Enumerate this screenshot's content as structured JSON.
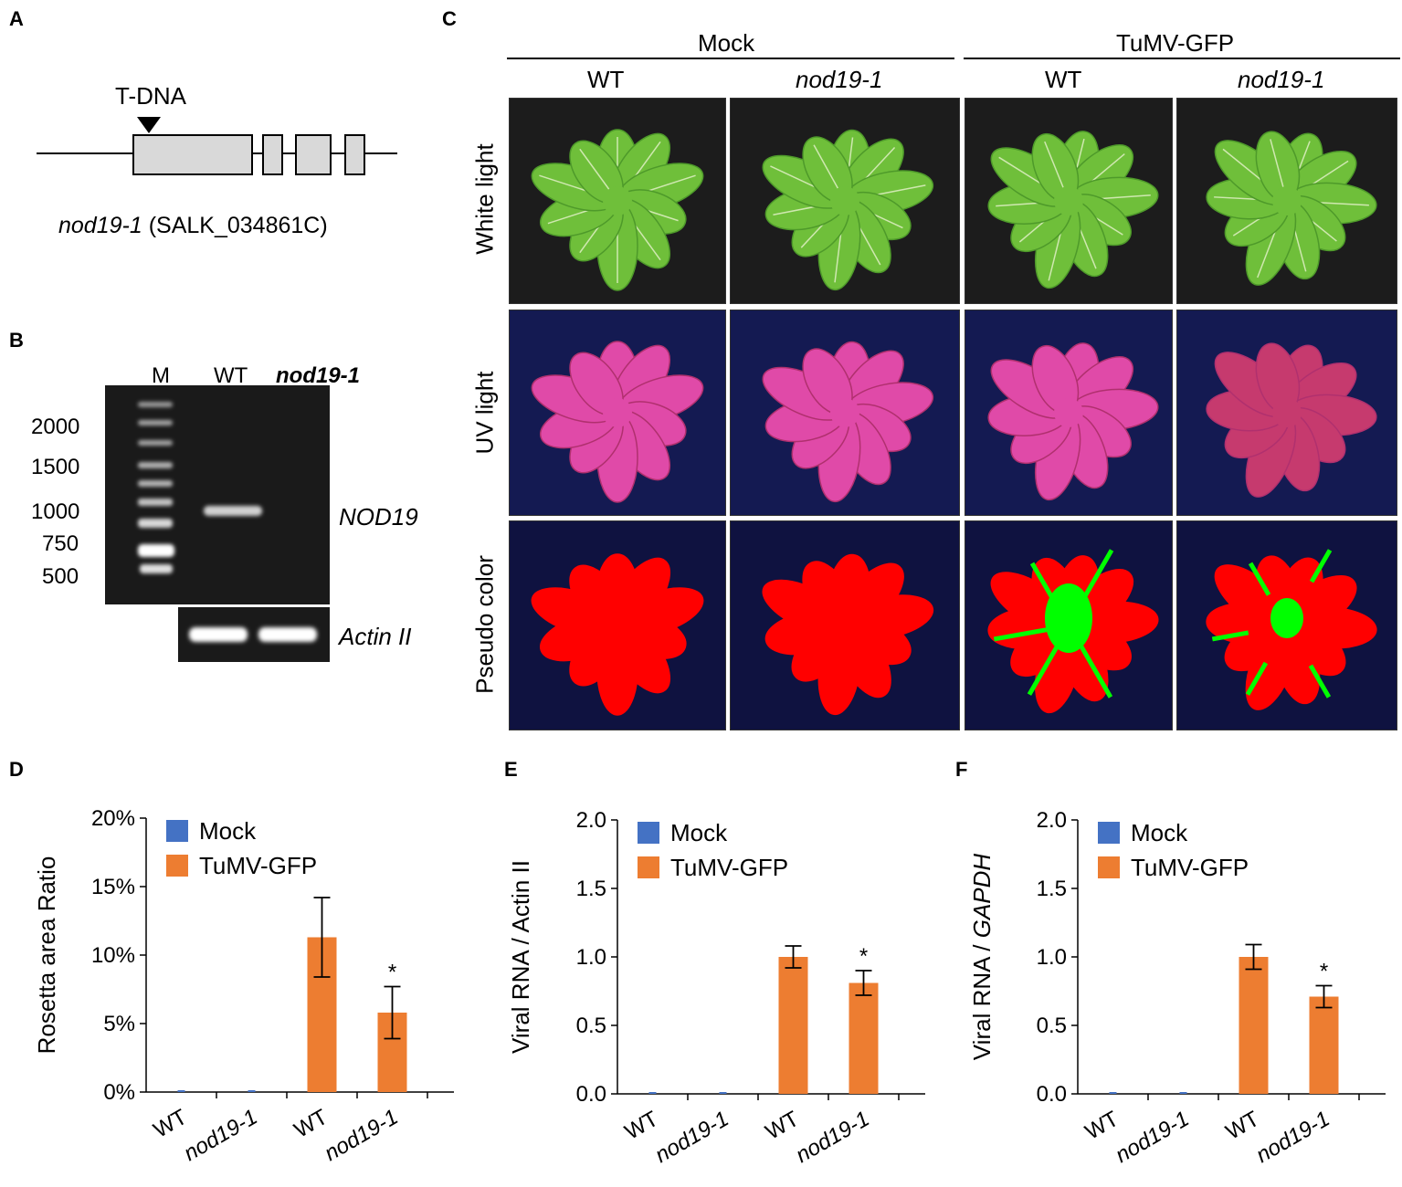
{
  "panels": {
    "a": {
      "letter": "A",
      "insertion_label": "T-DNA",
      "allele": "nod19-1",
      "line": "(SALK_034861C)"
    },
    "b": {
      "letter": "B",
      "lane_labels": [
        "M",
        "WT",
        "nod19-1"
      ],
      "ladder": [
        "2000",
        "1500",
        "1000",
        "750",
        "500"
      ],
      "gene_label": "NOD19",
      "control_label": "Actin II"
    },
    "c": {
      "letter": "C",
      "groups": [
        "Mock",
        "TuMV-GFP"
      ],
      "columns": [
        "WT",
        "nod19-1",
        "WT",
        "nod19-1"
      ],
      "rows": [
        "White light",
        "UV light",
        "Pseudo color"
      ]
    },
    "d": {
      "letter": "D"
    },
    "e": {
      "letter": "E"
    },
    "f": {
      "letter": "F"
    }
  },
  "colors": {
    "mock": "#4472C4",
    "tumv": "#ED7D31",
    "gel_bg": "#151515",
    "pseudo_red": "#ff0000",
    "pseudo_green": "#00ff00"
  },
  "chart_data": [
    {
      "panel": "D",
      "type": "bar",
      "ylabel": "Rosetta area Ratio",
      "ylabel_italic": "",
      "yticks": [
        "0%",
        "5%",
        "10%",
        "15%",
        "20%"
      ],
      "ylim": [
        0,
        20
      ],
      "categories": [
        "WT",
        "nod19-1",
        "WT",
        "nod19-1"
      ],
      "series": [
        {
          "name": "Mock",
          "color": "#4472C4",
          "values": [
            0,
            0,
            null,
            null
          ]
        },
        {
          "name": "TuMV-GFP",
          "color": "#ED7D31",
          "values": [
            null,
            null,
            11.3,
            5.8
          ],
          "errors": [
            null,
            null,
            2.9,
            1.9
          ]
        }
      ],
      "annotations": [
        {
          "category_index": 3,
          "text": "*"
        }
      ],
      "legend": "top-left"
    },
    {
      "panel": "E",
      "type": "bar",
      "ylabel": "Viral RNA / Actin II",
      "ylabel_italic": "",
      "yticks": [
        "0.0",
        "0.5",
        "1.0",
        "1.5",
        "2.0"
      ],
      "ylim": [
        0,
        2
      ],
      "categories": [
        "WT",
        "nod19-1",
        "WT",
        "nod19-1"
      ],
      "series": [
        {
          "name": "Mock",
          "color": "#4472C4",
          "values": [
            0,
            0,
            null,
            null
          ]
        },
        {
          "name": "TuMV-GFP",
          "color": "#ED7D31",
          "values": [
            null,
            null,
            1.0,
            0.81
          ],
          "errors": [
            null,
            null,
            0.08,
            0.09
          ]
        }
      ],
      "annotations": [
        {
          "category_index": 3,
          "text": "*"
        }
      ],
      "legend": "top-left"
    },
    {
      "panel": "F",
      "type": "bar",
      "ylabel": "Viral RNA / ",
      "ylabel_italic": "GAPDH",
      "yticks": [
        "0.0",
        "0.5",
        "1.0",
        "1.5",
        "2.0"
      ],
      "ylim": [
        0,
        2
      ],
      "categories": [
        "WT",
        "nod19-1",
        "WT",
        "nod19-1"
      ],
      "series": [
        {
          "name": "Mock",
          "color": "#4472C4",
          "values": [
            0,
            0,
            null,
            null
          ]
        },
        {
          "name": "TuMV-GFP",
          "color": "#ED7D31",
          "values": [
            null,
            null,
            1.0,
            0.71
          ],
          "errors": [
            null,
            null,
            0.09,
            0.08
          ]
        }
      ],
      "annotations": [
        {
          "category_index": 3,
          "text": "*"
        }
      ],
      "legend": "top-left"
    }
  ]
}
